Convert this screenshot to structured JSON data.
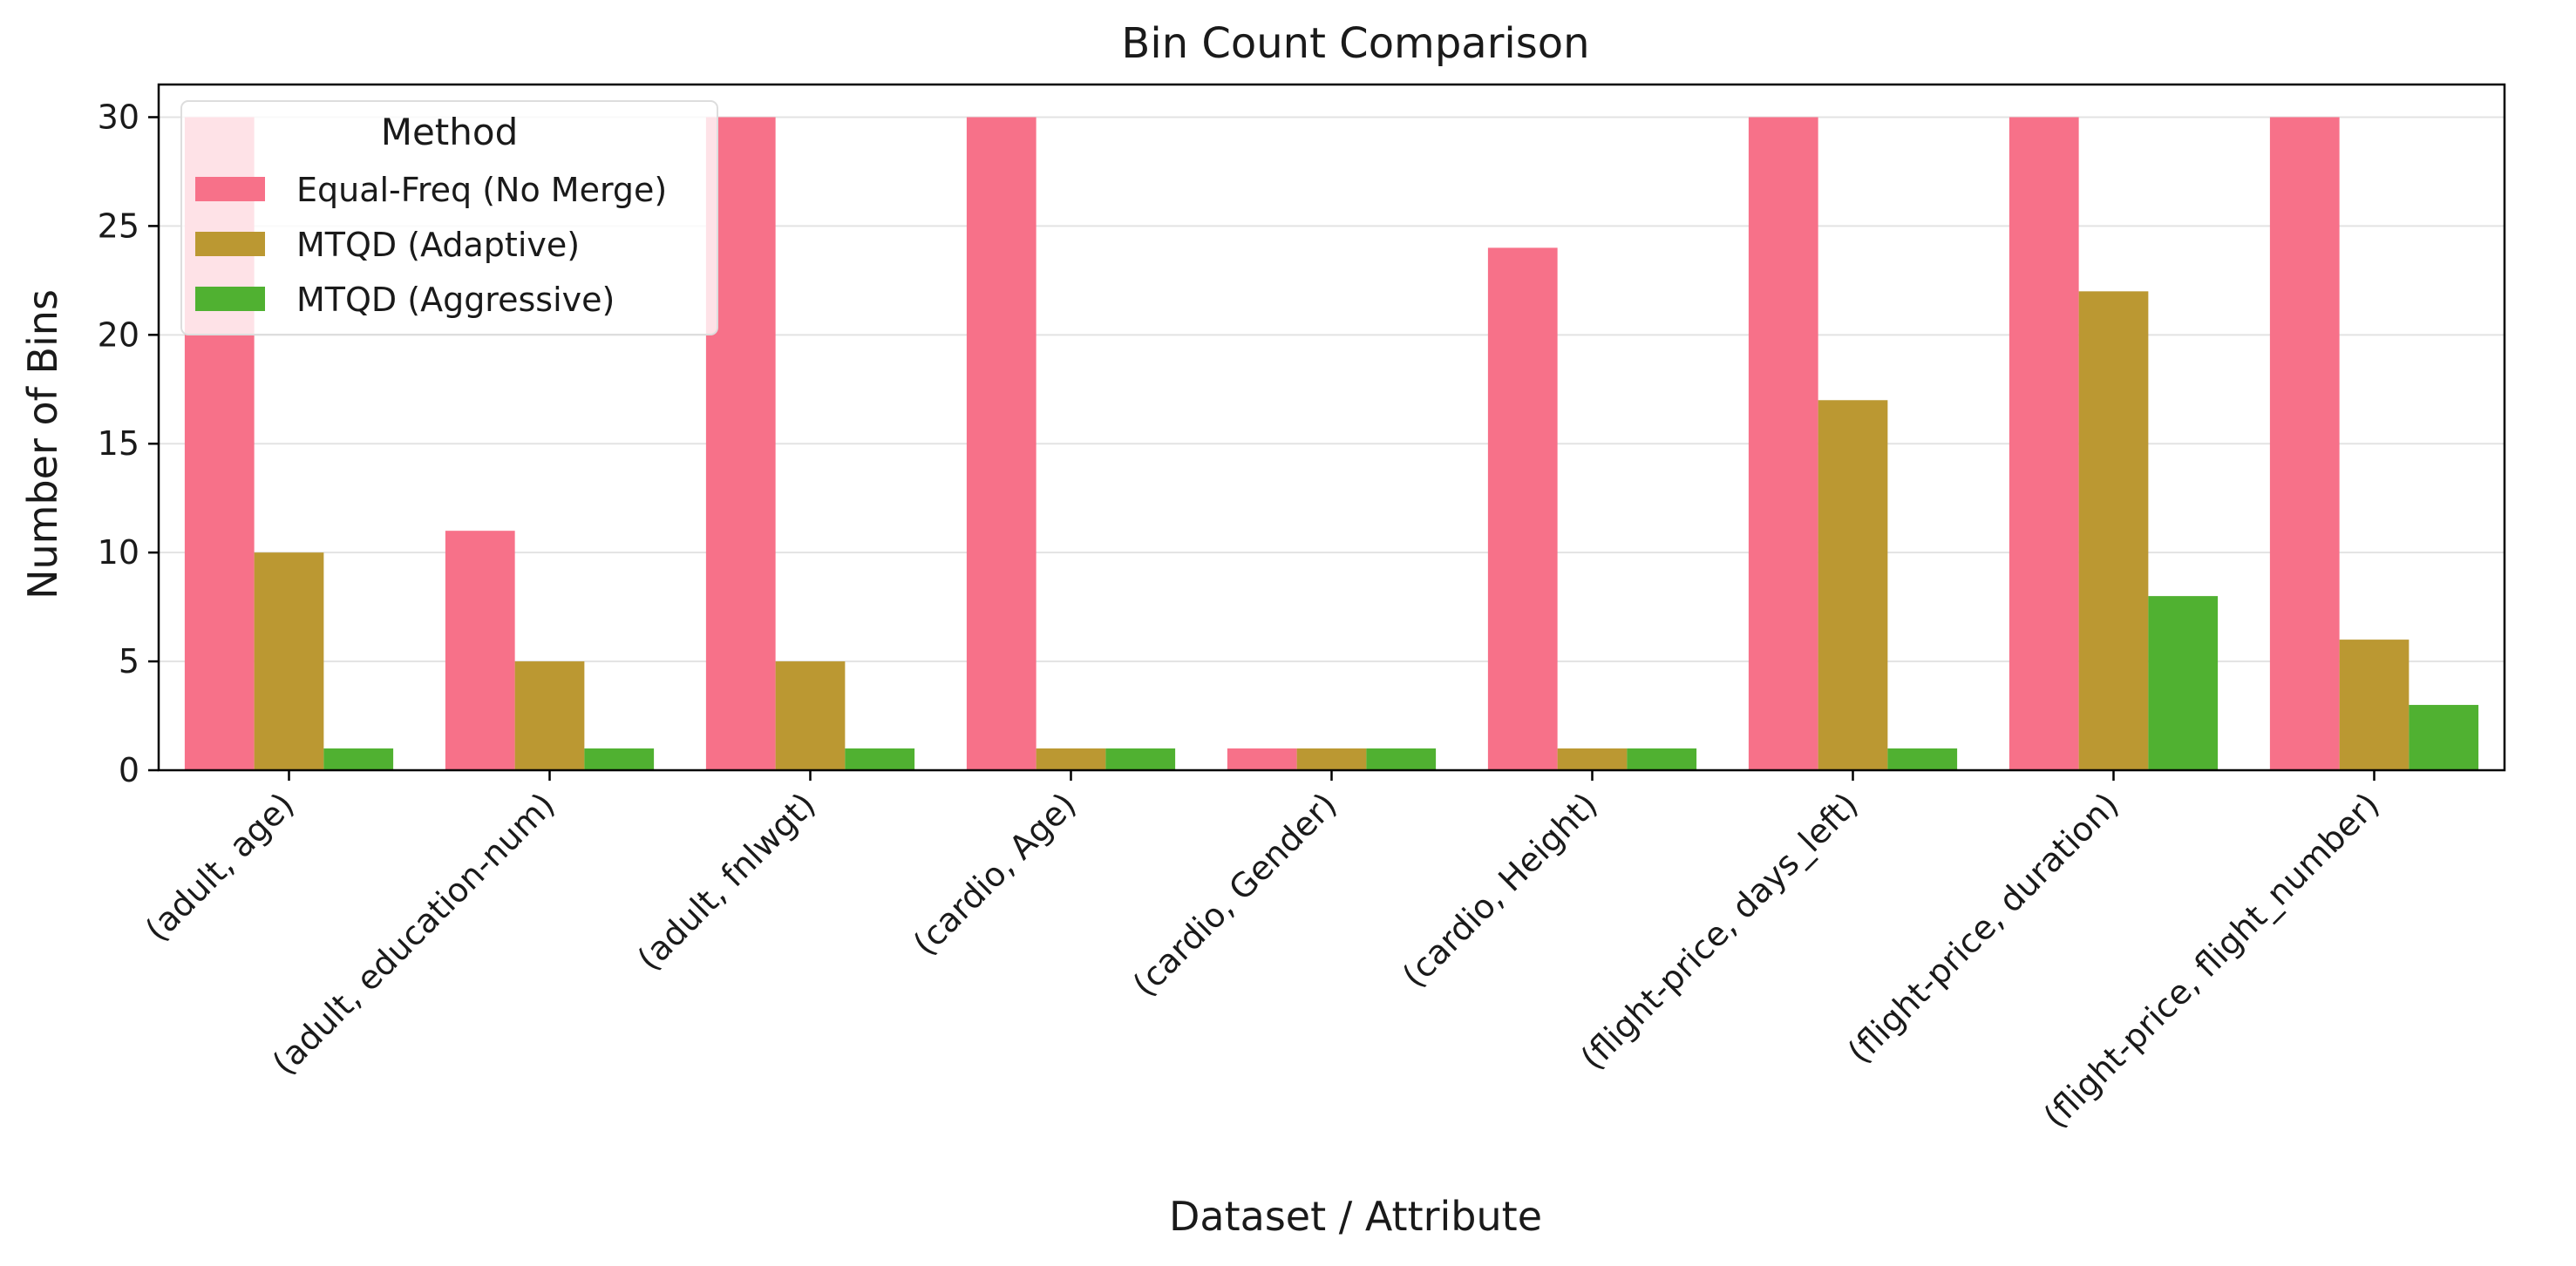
{
  "chart_data": {
    "type": "bar",
    "title": "Bin Count Comparison",
    "xlabel": "Dataset / Attribute",
    "ylabel": "Number of Bins",
    "ylim": [
      0,
      31.5
    ],
    "yticks": [
      0,
      5,
      10,
      15,
      20,
      25,
      30
    ],
    "grid": "horizontal",
    "legend": {
      "title": "Method",
      "placement": "top-left"
    },
    "categories": [
      "(adult, age)",
      "(adult, education-num)",
      "(adult, fnlwgt)",
      "(cardio, Age)",
      "(cardio, Gender)",
      "(cardio, Height)",
      "(flight-price, days_left)",
      "(flight-price, duration)",
      "(flight-price, flight_number)"
    ],
    "series": [
      {
        "name": "Equal-Freq (No Merge)",
        "color": "#f77189",
        "values": [
          30,
          11,
          30,
          30,
          1,
          24,
          30,
          30,
          30
        ]
      },
      {
        "name": "MTQD (Adaptive)",
        "color": "#bb9832",
        "values": [
          10,
          5,
          5,
          1,
          1,
          1,
          17,
          22,
          6
        ]
      },
      {
        "name": "MTQD (Aggressive)",
        "color": "#50b131",
        "values": [
          1,
          1,
          1,
          1,
          1,
          1,
          1,
          8,
          3
        ]
      }
    ]
  }
}
